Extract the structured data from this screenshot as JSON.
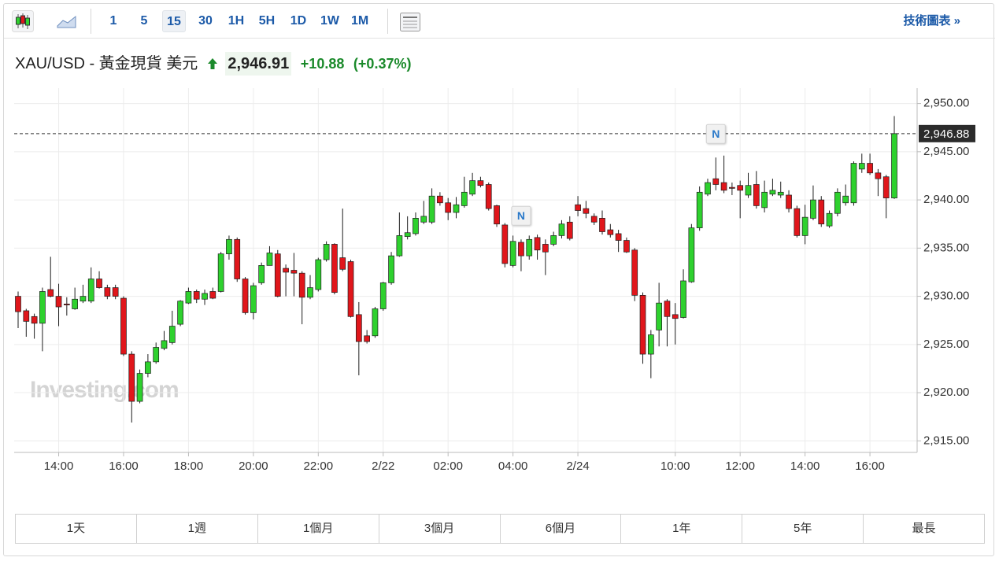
{
  "toolbar": {
    "intervals": [
      "1",
      "5",
      "15",
      "30",
      "1H",
      "5H",
      "1D",
      "1W",
      "1M"
    ],
    "selected": "15",
    "technical_chart": "技術圖表 »"
  },
  "header": {
    "symbol": "XAU/USD - 黃金現貨 美元",
    "price": "2,946.91",
    "change": "+10.88",
    "change_pct": "(+0.37%)"
  },
  "ranges": [
    "1天",
    "1週",
    "1個月",
    "3個月",
    "6個月",
    "1年",
    "5年",
    "最長"
  ],
  "chart_data": {
    "type": "candlestick",
    "watermark": "Investing.com",
    "categories": [
      null,
      null,
      null,
      null,
      null,
      "14:00",
      null,
      null,
      null,
      null,
      null,
      null,
      null,
      "16:00",
      null,
      null,
      null,
      null,
      null,
      null,
      null,
      "18:00",
      null,
      null,
      null,
      null,
      null,
      null,
      null,
      "20:00",
      null,
      null,
      null,
      null,
      null,
      null,
      null,
      "22:00",
      null,
      null,
      null,
      null,
      null,
      null,
      null,
      "2/22",
      null,
      null,
      null,
      null,
      null,
      null,
      null,
      "02:00",
      null,
      null,
      null,
      null,
      null,
      null,
      null,
      "04:00",
      null,
      null,
      null,
      null,
      null,
      null,
      null,
      "2/24",
      null,
      null,
      null,
      null,
      null,
      null,
      null,
      null,
      null,
      null,
      null,
      "10:00",
      null,
      null,
      null,
      null,
      null,
      null,
      null,
      "12:00",
      null,
      null,
      null,
      null,
      null,
      null,
      null,
      "14:00",
      null,
      null,
      null,
      null,
      null,
      null,
      null,
      "16:00",
      null,
      null,
      null
    ],
    "series": [
      {
        "name": "XAU/USD",
        "up_color": "#2ed12e",
        "down_color": "#e0161b",
        "outline_color": "#1e1e1e",
        "open": [
          2930.0,
          2928.5,
          2927.9,
          2927.2,
          2930.7,
          2930.0,
          2929.2,
          2928.7,
          2929.5,
          2929.5,
          2931.8,
          2930.9,
          2930.9,
          2929.8,
          2924.0,
          2919.1,
          2922.0,
          2923.2,
          2924.6,
          2925.2,
          2927.1,
          2929.3,
          2930.5,
          2929.7,
          2930.5,
          2930.5,
          2934.4,
          2935.9,
          2931.8,
          2928.3,
          2931.4,
          2933.2,
          2934.4,
          2932.9,
          2932.7,
          2932.4,
          2929.9,
          2930.7,
          2933.8,
          2935.4,
          2934.0,
          2933.6,
          2928.1,
          2925.9,
          2925.9,
          2928.7,
          2931.4,
          2934.2,
          2936.2,
          2936.5,
          2937.7,
          2937.7,
          2940.4,
          2939.7,
          2938.7,
          2939.4,
          2940.6,
          2942.0,
          2941.6,
          2939.4,
          2937.4,
          2933.2,
          2935.6,
          2934.2,
          2936.1,
          2935.4,
          2935.4,
          2936.3,
          2937.7,
          2939.5,
          2939.1,
          2938.3,
          2938.1,
          2936.9,
          2936.5,
          2935.8,
          2934.8,
          2930.1,
          2924.0,
          2926.5,
          2929.5,
          2928.1,
          2927.8,
          2931.5,
          2937.1,
          2940.6,
          2942.2,
          2941.8,
          2941.3,
          2941.5,
          2940.5,
          2941.6,
          2939.2,
          2940.6,
          2940.5,
          2940.5,
          2939.1,
          2936.3,
          2938.1,
          2940.0,
          2937.3,
          2938.6,
          2939.7,
          2939.7,
          2943.2,
          2943.8,
          2942.8,
          2942.4,
          2940.2
        ],
        "high": [
          2930.5,
          2928.7,
          2928.2,
          2930.9,
          2934.1,
          2931.3,
          2929.9,
          2930.9,
          2931.2,
          2933.0,
          2932.6,
          2931.2,
          2931.2,
          2930.0,
          2924.3,
          2922.4,
          2924.0,
          2925.2,
          2926.4,
          2928.5,
          2929.6,
          2930.9,
          2930.7,
          2930.7,
          2930.9,
          2934.6,
          2936.3,
          2936.1,
          2932.0,
          2931.4,
          2933.5,
          2935.2,
          2934.8,
          2933.3,
          2934.5,
          2932.6,
          2932.2,
          2934.0,
          2935.7,
          2935.5,
          2939.1,
          2933.8,
          2929.4,
          2926.5,
          2928.9,
          2931.5,
          2934.6,
          2938.7,
          2938.3,
          2938.7,
          2939.9,
          2941.2,
          2940.8,
          2940.2,
          2940.3,
          2942.4,
          2942.8,
          2942.4,
          2941.8,
          2939.5,
          2937.6,
          2936.3,
          2935.9,
          2936.3,
          2936.4,
          2935.9,
          2936.7,
          2937.9,
          2938.3,
          2940.4,
          2939.9,
          2938.6,
          2938.9,
          2937.5,
          2936.9,
          2936.1,
          2935.0,
          2930.4,
          2926.5,
          2931.4,
          2929.7,
          2929.3,
          2932.8,
          2937.5,
          2941.4,
          2942.2,
          2944.4,
          2944.6,
          2941.8,
          2942.0,
          2942.8,
          2943.0,
          2942.0,
          2942.2,
          2941.9,
          2941.0,
          2939.4,
          2939.5,
          2941.5,
          2940.4,
          2938.9,
          2941.2,
          2941.6,
          2944.0,
          2944.8,
          2944.8,
          2943.2,
          2942.6,
          2948.7
        ],
        "low": [
          2926.7,
          2925.8,
          2925.6,
          2924.3,
          2929.9,
          2926.9,
          2928.0,
          2928.6,
          2929.3,
          2929.3,
          2930.8,
          2929.7,
          2929.7,
          2923.8,
          2916.9,
          2918.9,
          2921.6,
          2923.0,
          2924.4,
          2925.0,
          2926.9,
          2929.2,
          2929.3,
          2929.1,
          2929.7,
          2930.4,
          2933.8,
          2931.5,
          2928.1,
          2927.6,
          2931.2,
          2933.2,
          2929.9,
          2930.0,
          2930.0,
          2927.1,
          2929.7,
          2930.5,
          2933.6,
          2930.2,
          2932.6,
          2927.8,
          2921.8,
          2925.1,
          2925.7,
          2928.5,
          2931.2,
          2934.1,
          2935.9,
          2936.3,
          2937.5,
          2937.5,
          2939.4,
          2937.9,
          2938.1,
          2939.2,
          2940.4,
          2941.3,
          2938.9,
          2937.2,
          2933.0,
          2933.0,
          2932.6,
          2933.8,
          2933.8,
          2932.2,
          2935.2,
          2936.0,
          2935.8,
          2938.3,
          2938.1,
          2937.4,
          2936.4,
          2936.1,
          2934.6,
          2934.5,
          2929.5,
          2923.0,
          2921.5,
          2924.8,
          2924.8,
          2925.0,
          2927.7,
          2931.4,
          2936.8,
          2940.4,
          2941.0,
          2940.7,
          2940.5,
          2938.1,
          2940.2,
          2939.1,
          2938.7,
          2940.4,
          2940.2,
          2938.7,
          2936.1,
          2935.4,
          2937.9,
          2937.2,
          2937.1,
          2938.3,
          2939.4,
          2939.4,
          2942.8,
          2942.6,
          2940.4,
          2938.1,
          2940.1
        ],
        "close": [
          2928.4,
          2927.4,
          2927.2,
          2930.5,
          2930.0,
          2928.9,
          2929.1,
          2929.7,
          2930.0,
          2931.8,
          2930.9,
          2930.0,
          2930.0,
          2924.0,
          2919.1,
          2922.0,
          2923.2,
          2924.7,
          2925.4,
          2926.9,
          2929.5,
          2930.5,
          2929.7,
          2930.3,
          2929.8,
          2934.4,
          2935.9,
          2931.8,
          2928.3,
          2931.1,
          2933.2,
          2934.5,
          2930.0,
          2932.5,
          2932.4,
          2929.9,
          2930.9,
          2933.8,
          2935.4,
          2930.4,
          2932.8,
          2927.9,
          2925.3,
          2925.3,
          2928.7,
          2931.4,
          2934.2,
          2936.3,
          2936.6,
          2938.1,
          2938.3,
          2940.4,
          2939.7,
          2938.7,
          2939.5,
          2940.8,
          2942.0,
          2941.5,
          2939.1,
          2937.5,
          2933.4,
          2935.7,
          2934.2,
          2935.9,
          2934.8,
          2934.6,
          2936.3,
          2937.5,
          2936.0,
          2938.9,
          2938.6,
          2937.7,
          2936.7,
          2936.4,
          2935.8,
          2934.6,
          2930.1,
          2924.0,
          2926.0,
          2929.3,
          2927.9,
          2927.7,
          2931.6,
          2937.1,
          2940.8,
          2941.8,
          2941.6,
          2941.0,
          2941.2,
          2941.0,
          2941.5,
          2939.4,
          2940.8,
          2941.0,
          2940.8,
          2939.1,
          2936.3,
          2938.2,
          2940.0,
          2937.5,
          2938.6,
          2940.8,
          2940.4,
          2943.8,
          2943.8,
          2942.8,
          2942.2,
          2940.2,
          2946.88
        ]
      }
    ],
    "last_price": {
      "value": 2946.88,
      "label": "2,946.88"
    },
    "annotations": [
      {
        "text": "N",
        "x_index": 62
      },
      {
        "text": "N",
        "x_index": 86
      }
    ],
    "ylim": [
      2913.8,
      2951.6
    ],
    "yticks": [
      {
        "value": 2915,
        "label": "2,915.00"
      },
      {
        "value": 2920,
        "label": "2,920.00"
      },
      {
        "value": 2925,
        "label": "2,925.00"
      },
      {
        "value": 2930,
        "label": "2,930.00"
      },
      {
        "value": 2935,
        "label": "2,935.00"
      },
      {
        "value": 2940,
        "label": "2,940.00"
      },
      {
        "value": 2945,
        "label": "2,945.00"
      },
      {
        "value": 2950,
        "label": "2,950.00"
      }
    ],
    "grid": true,
    "y_axis_side": "right"
  }
}
